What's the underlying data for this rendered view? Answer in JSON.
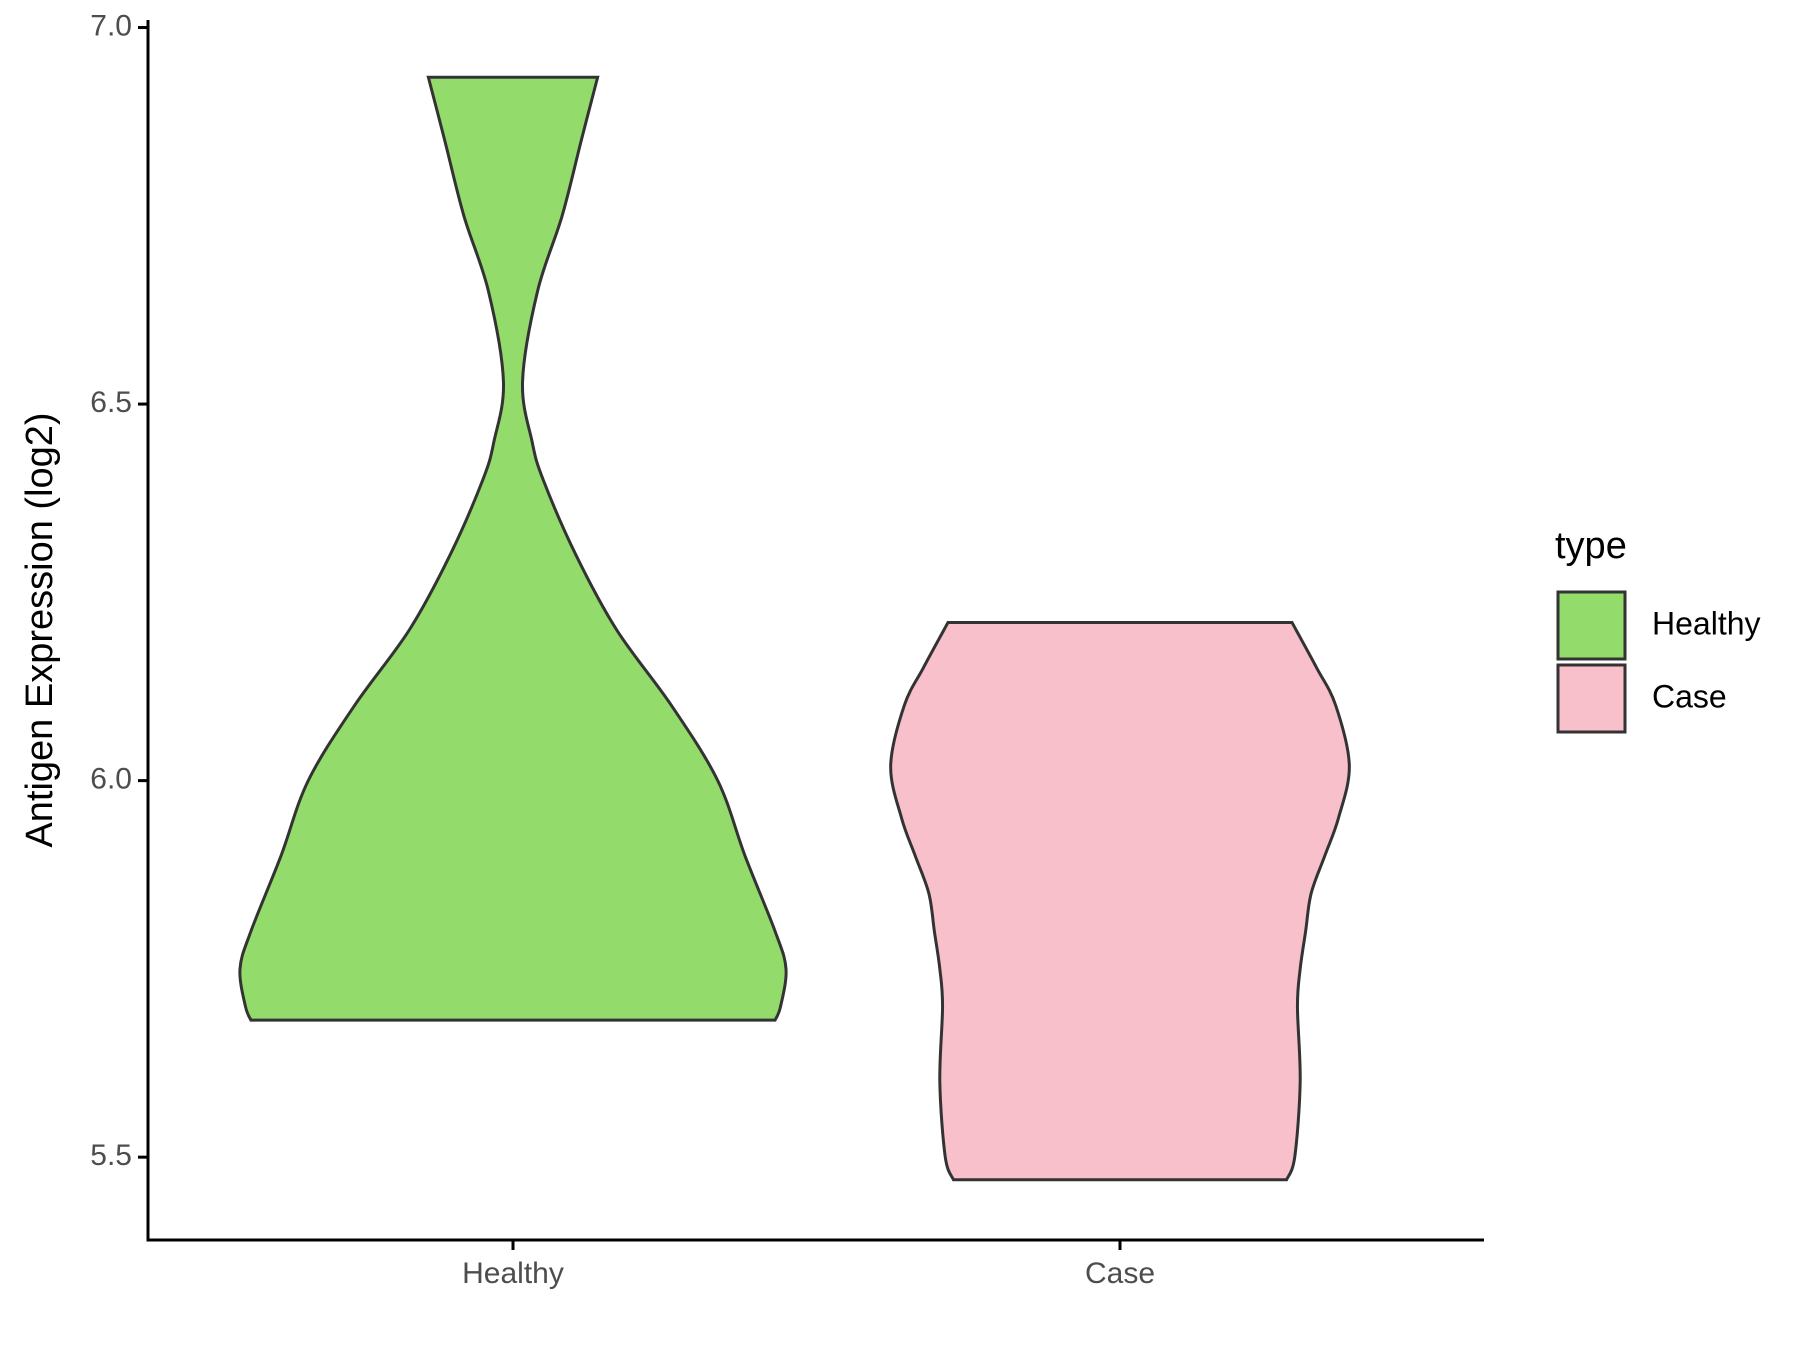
{
  "chart_data": {
    "type": "violin",
    "y_label": "Antigen Expression (log2)",
    "categories": [
      "Healthy",
      "Case"
    ],
    "ylim": [
      5.39,
      7.01
    ],
    "yticks": [
      {
        "value": 5.5,
        "label": "5.5"
      },
      {
        "value": 6.0,
        "label": "6.0"
      },
      {
        "value": 6.5,
        "label": "6.5"
      },
      {
        "value": 7.0,
        "label": "7.0"
      }
    ],
    "legend_title": "type",
    "legend_position": "right",
    "series": [
      {
        "name": "Healthy",
        "color": "#93dc6b",
        "y": [
          6.934,
          6.85,
          6.75,
          6.65,
          6.53,
          6.45,
          6.4,
          6.3,
          6.2,
          6.1,
          6.0,
          5.9,
          5.8,
          5.75,
          5.7,
          5.682
        ],
        "density": [
          0.31,
          0.25,
          0.18,
          0.09,
          0.035,
          0.07,
          0.11,
          0.23,
          0.38,
          0.58,
          0.75,
          0.85,
          0.96,
          1.0,
          0.98,
          0.96
        ]
      },
      {
        "name": "Case",
        "color": "#f7c0cb",
        "y": [
          6.21,
          6.15,
          6.1,
          6.02,
          5.95,
          5.9,
          5.85,
          5.8,
          5.75,
          5.7,
          5.6,
          5.5,
          5.47
        ],
        "density": [
          0.63,
          0.72,
          0.79,
          0.84,
          0.8,
          0.75,
          0.7,
          0.68,
          0.66,
          0.65,
          0.66,
          0.64,
          0.61
        ]
      }
    ]
  }
}
